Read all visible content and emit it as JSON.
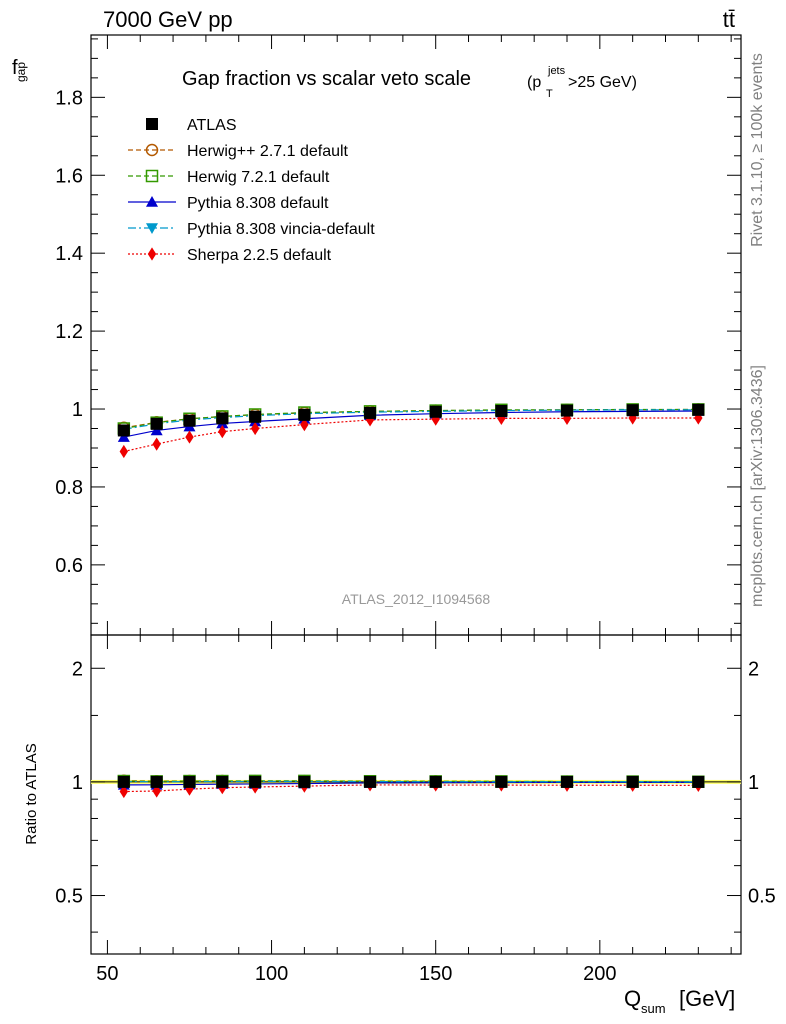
{
  "header": {
    "energy_label": "7000 GeV pp",
    "process_label": "tt̄"
  },
  "side_labels": {
    "rivet": "Rivet 3.1.10, ≥ 100k events",
    "source": "mcplots.cern.ch [arXiv:1306.3436]"
  },
  "watermark": "ATLAS_2012_I1094568",
  "chart_data": {
    "type": "line",
    "title": "Gap fraction vs scalar veto scale",
    "title_cut": {
      "prefix": "(p",
      "sup": "jets",
      "sub": "T",
      "suffix": ">25 GeV)"
    },
    "ylabel_main": "f",
    "ylabel_main_sub": "gap",
    "ylabel_ratio": "Ratio to ATLAS",
    "xlabel": "Q",
    "xlabel_sub": "sum",
    "xlabel_unit": "[GeV]",
    "xlim": [
      45,
      243
    ],
    "ylim_main": [
      0.42,
      1.96
    ],
    "ylim_ratio": [
      0.35,
      2.45
    ],
    "ratio_log": true,
    "x_ticks": [
      50,
      100,
      150,
      200
    ],
    "y_ticks_main": [
      0.6,
      0.8,
      1,
      1.2,
      1.4,
      1.6,
      1.8
    ],
    "y_ticks_ratio": [
      0.5,
      1,
      2
    ],
    "legend_position": "top-left",
    "x": [
      55,
      65,
      75,
      85,
      95,
      110,
      130,
      150,
      170,
      190,
      210,
      230
    ],
    "series": [
      {
        "name": "ATLAS",
        "marker": "square-filled",
        "color": "#000000",
        "dash": "none",
        "values": [
          0.945,
          0.962,
          0.97,
          0.976,
          0.98,
          0.985,
          0.99,
          0.993,
          0.995,
          0.996,
          0.997,
          0.998
        ]
      },
      {
        "name": "Herwig++ 2.7.1 default",
        "marker": "circle-open",
        "color": "#b35900",
        "dash": "5,3",
        "values": [
          0.952,
          0.966,
          0.975,
          0.981,
          0.985,
          0.99,
          0.994,
          0.996,
          0.997,
          0.998,
          0.998,
          0.999
        ]
      },
      {
        "name": "Herwig 7.2.1 default",
        "marker": "square-open",
        "color": "#339900",
        "dash": "5,3",
        "values": [
          0.95,
          0.965,
          0.975,
          0.981,
          0.986,
          0.991,
          0.994,
          0.996,
          0.998,
          0.998,
          0.999,
          0.999
        ]
      },
      {
        "name": "Pythia 8.308 default",
        "marker": "triangle-up",
        "color": "#0000cc",
        "dash": "none",
        "values": [
          0.928,
          0.945,
          0.955,
          0.963,
          0.968,
          0.975,
          0.984,
          0.988,
          0.991,
          0.993,
          0.994,
          0.995
        ]
      },
      {
        "name": "Pythia 8.308 vincia-default",
        "marker": "triangle-down",
        "color": "#0099cc",
        "dash": "8,3,2,3",
        "values": [
          0.948,
          0.962,
          0.972,
          0.978,
          0.983,
          0.988,
          0.992,
          0.994,
          0.996,
          0.997,
          0.998,
          0.998
        ]
      },
      {
        "name": "Sherpa 2.2.5 default",
        "marker": "diamond",
        "color": "#ee0000",
        "dash": "2,2",
        "values": [
          0.891,
          0.91,
          0.928,
          0.942,
          0.95,
          0.96,
          0.972,
          0.974,
          0.976,
          0.976,
          0.977,
          0.977
        ]
      }
    ],
    "ratio_band_color": "#ffff66"
  }
}
